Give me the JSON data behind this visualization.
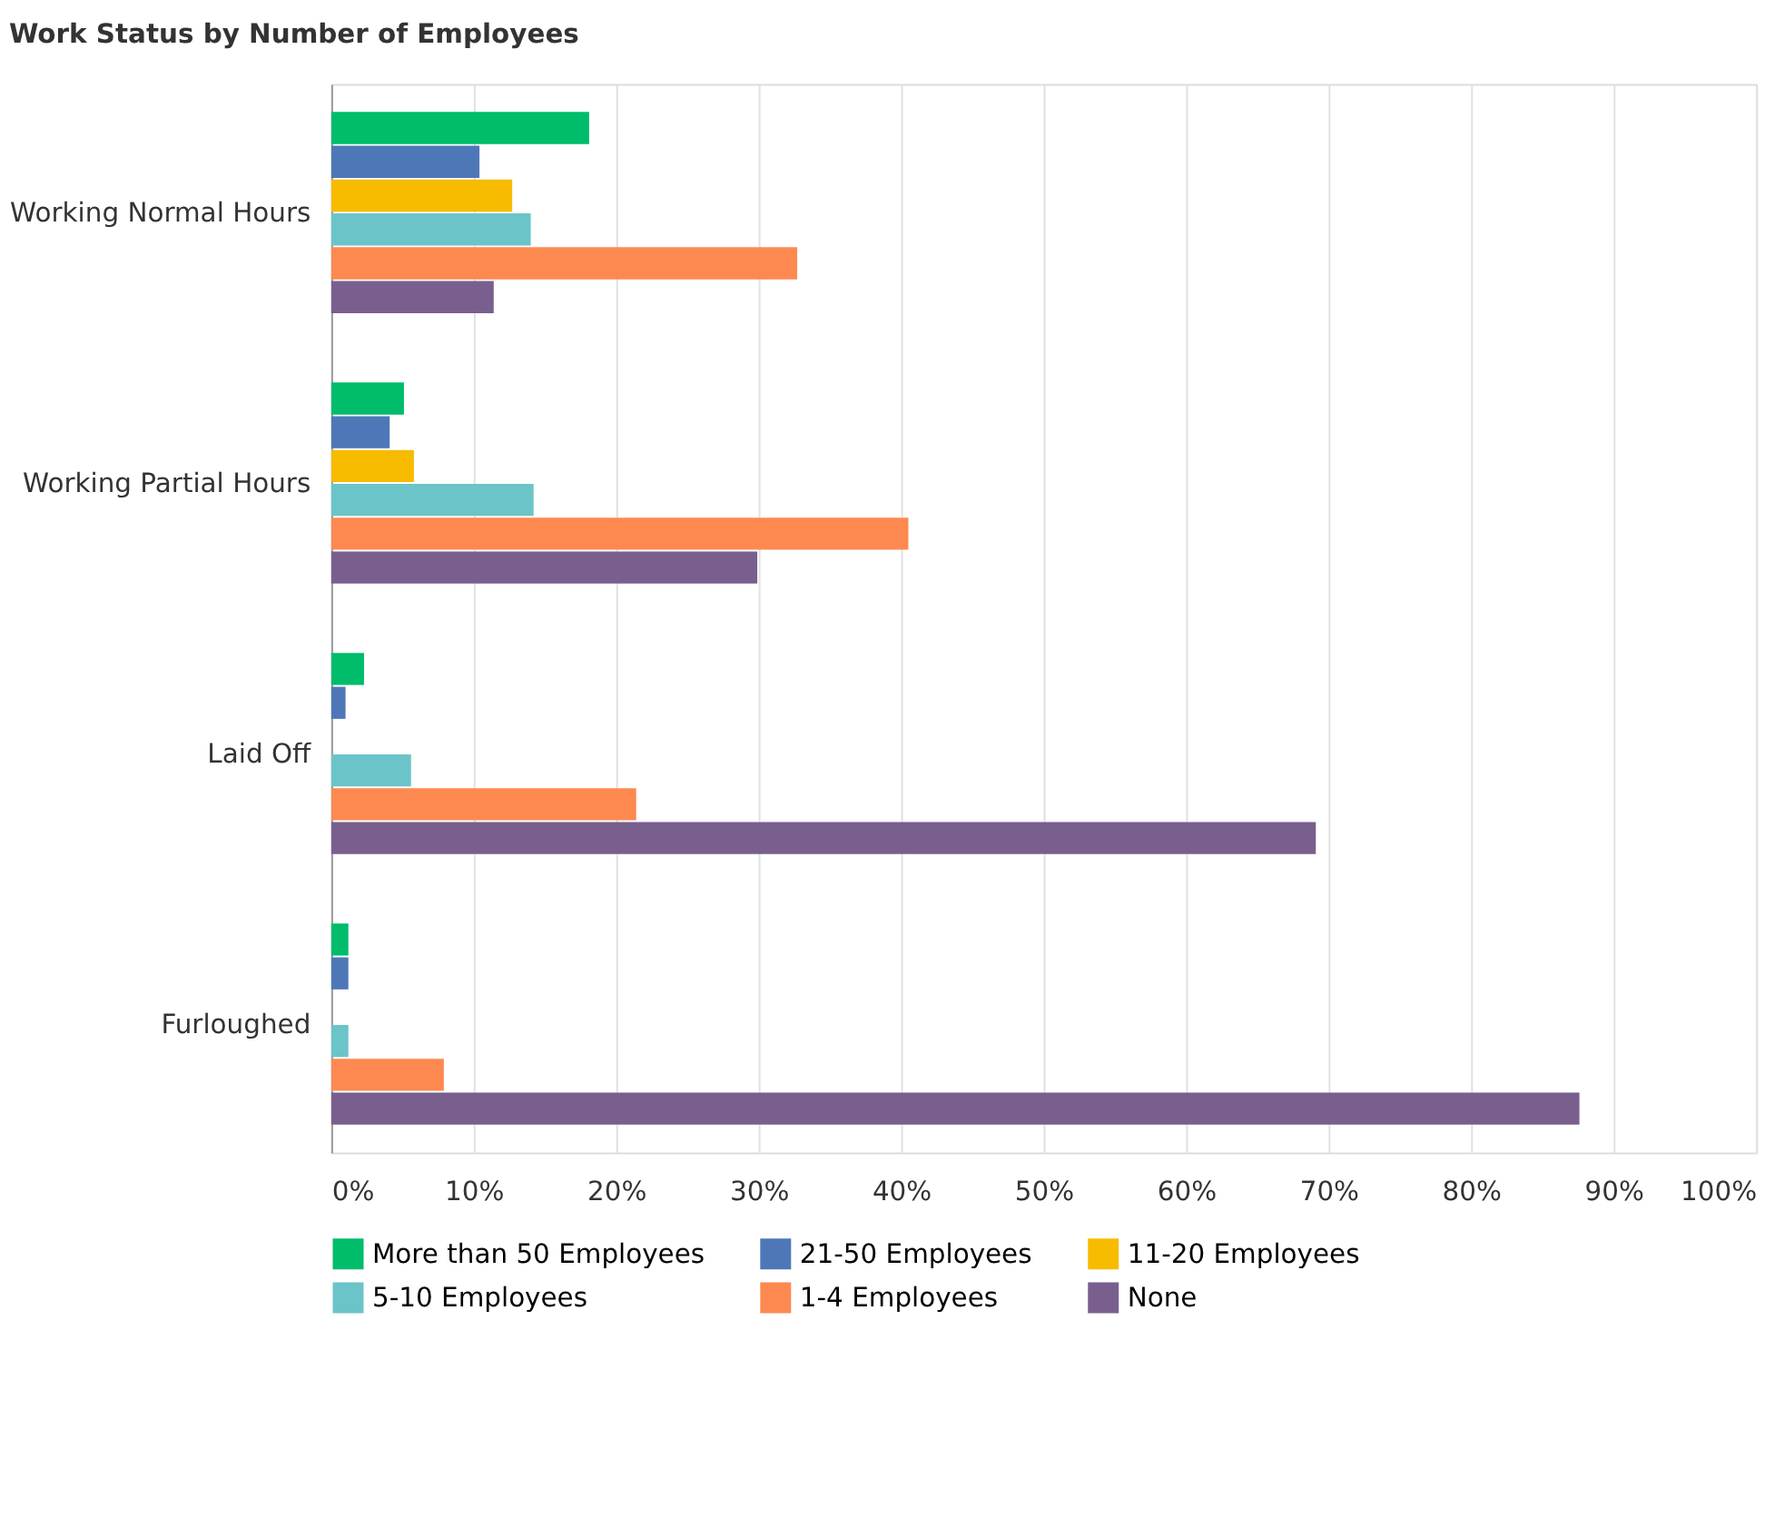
{
  "chart_data": {
    "type": "bar",
    "orientation": "horizontal",
    "title": "Work Status by Number of Employees",
    "categories": [
      "Working Normal Hours",
      "Working Partial Hours",
      "Laid Off",
      "Furloughed"
    ],
    "series": [
      {
        "name": "More than 50 Employees",
        "color": "#00bc6b",
        "values": [
          18.1,
          5.1,
          2.3,
          1.2
        ]
      },
      {
        "name": "21-50 Employees",
        "color": "#4e77b8",
        "values": [
          10.4,
          4.1,
          1.0,
          1.2
        ]
      },
      {
        "name": "11-20 Employees",
        "color": "#f7bb00",
        "values": [
          12.7,
          5.8,
          null,
          null
        ]
      },
      {
        "name": "5-10 Employees",
        "color": "#6bc4c8",
        "values": [
          14.0,
          14.2,
          5.6,
          1.2
        ]
      },
      {
        "name": "1-4 Employees",
        "color": "#fd8950",
        "values": [
          32.7,
          40.5,
          21.4,
          7.9
        ]
      },
      {
        "name": "None",
        "color": "#795f8e",
        "values": [
          11.4,
          29.9,
          69.1,
          87.6
        ]
      }
    ],
    "xlim": [
      0,
      100
    ],
    "xticks": [
      {
        "value": 0,
        "label": "0%"
      },
      {
        "value": 10,
        "label": "10%"
      },
      {
        "value": 20,
        "label": "20%"
      },
      {
        "value": 30,
        "label": "30%"
      },
      {
        "value": 40,
        "label": "40%"
      },
      {
        "value": 50,
        "label": "50%"
      },
      {
        "value": 60,
        "label": "60%"
      },
      {
        "value": 70,
        "label": "70%"
      },
      {
        "value": 80,
        "label": "80%"
      },
      {
        "value": 90,
        "label": "90%"
      },
      {
        "value": 100,
        "label": "100%"
      }
    ],
    "grid": "x",
    "legend": "bottom"
  }
}
